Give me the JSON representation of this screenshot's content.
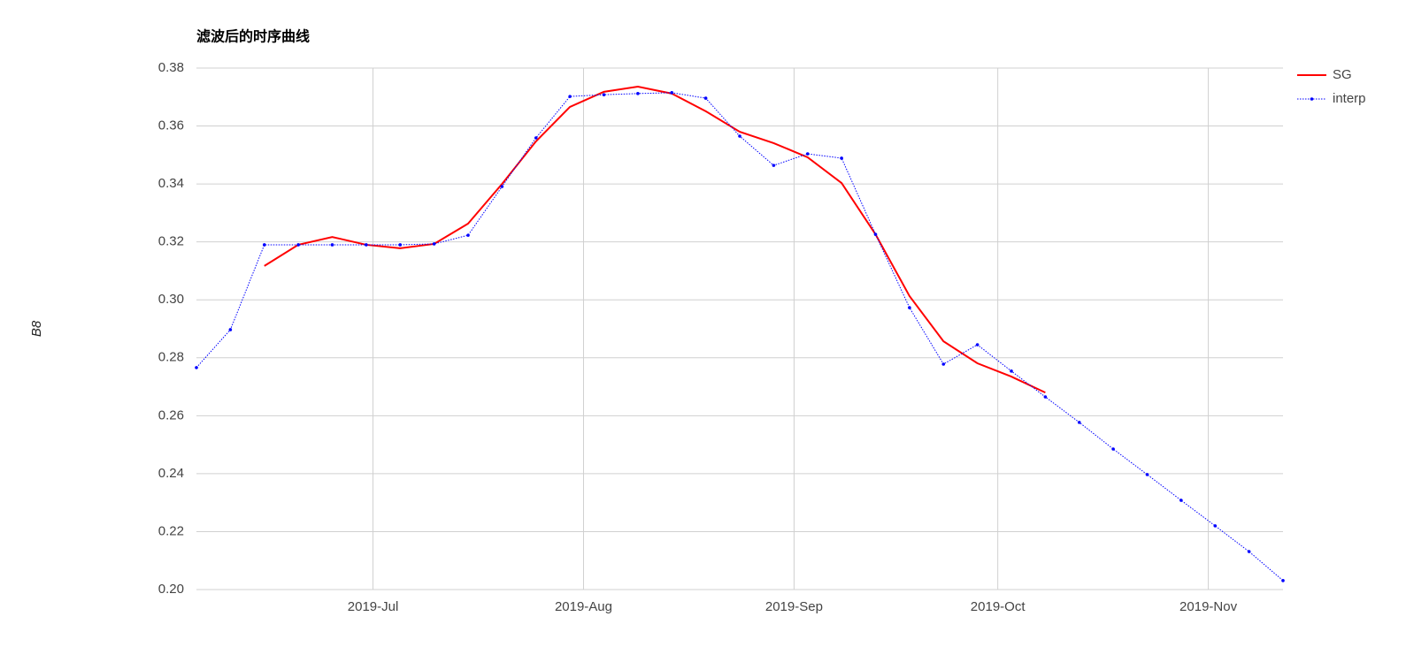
{
  "chart_data": {
    "type": "line",
    "title": "滤波后的时序曲线",
    "y_label": "B8",
    "x": [
      "2019-06-05",
      "2019-06-10",
      "2019-06-15",
      "2019-06-20",
      "2019-06-25",
      "2019-06-30",
      "2019-07-05",
      "2019-07-10",
      "2019-07-15",
      "2019-07-20",
      "2019-07-25",
      "2019-07-30",
      "2019-08-04",
      "2019-08-09",
      "2019-08-14",
      "2019-08-19",
      "2019-08-24",
      "2019-08-29",
      "2019-09-03",
      "2019-09-08",
      "2019-09-13",
      "2019-09-18",
      "2019-09-23",
      "2019-09-28",
      "2019-10-03",
      "2019-10-08",
      "2019-10-13",
      "2019-10-18",
      "2019-10-23",
      "2019-10-28",
      "2019-11-02",
      "2019-11-07",
      "2019-11-12"
    ],
    "series": [
      {
        "name": "SG",
        "color": "#ff0000",
        "style": "solid",
        "markers": false,
        "values": [
          null,
          null,
          0.3117,
          0.319,
          0.3217,
          0.319,
          0.3178,
          0.3193,
          0.3263,
          0.34,
          0.3547,
          0.3666,
          0.3718,
          0.3736,
          0.3712,
          0.3651,
          0.358,
          0.3541,
          0.3492,
          0.3403,
          0.3226,
          0.3013,
          0.2857,
          0.2781,
          0.2735,
          0.268,
          null,
          null,
          null,
          null,
          null,
          null,
          null
        ]
      },
      {
        "name": "interp",
        "color": "#0000ff",
        "style": "dotted",
        "markers": true,
        "values": [
          0.2766,
          0.2897,
          0.319,
          0.319,
          0.319,
          0.319,
          0.319,
          0.3193,
          0.3223,
          0.3391,
          0.3559,
          0.3702,
          0.3708,
          0.3712,
          0.3715,
          0.3696,
          0.3565,
          0.3464,
          0.3504,
          0.3489,
          0.3226,
          0.2973,
          0.2778,
          0.2845,
          0.2754,
          0.2665,
          0.2577,
          0.2485,
          0.2397,
          0.2308,
          0.222,
          0.2131,
          0.2031
        ]
      }
    ],
    "xlim": [
      "2019-06-05",
      "2019-11-12"
    ],
    "xticks": [
      {
        "value": "2019-07-01",
        "label": "2019-Jul"
      },
      {
        "value": "2019-08-01",
        "label": "2019-Aug"
      },
      {
        "value": "2019-09-01",
        "label": "2019-Sep"
      },
      {
        "value": "2019-10-01",
        "label": "2019-Oct"
      },
      {
        "value": "2019-11-01",
        "label": "2019-Nov"
      }
    ],
    "ylim": [
      0.2,
      0.38
    ],
    "yticks": [
      {
        "value": 0.2,
        "label": "0.20"
      },
      0.22,
      0.24,
      0.26,
      0.28,
      {
        "value": 0.3,
        "label": "0.30"
      },
      0.32,
      0.34,
      0.36,
      0.38
    ],
    "grid": true,
    "legend": "right"
  }
}
